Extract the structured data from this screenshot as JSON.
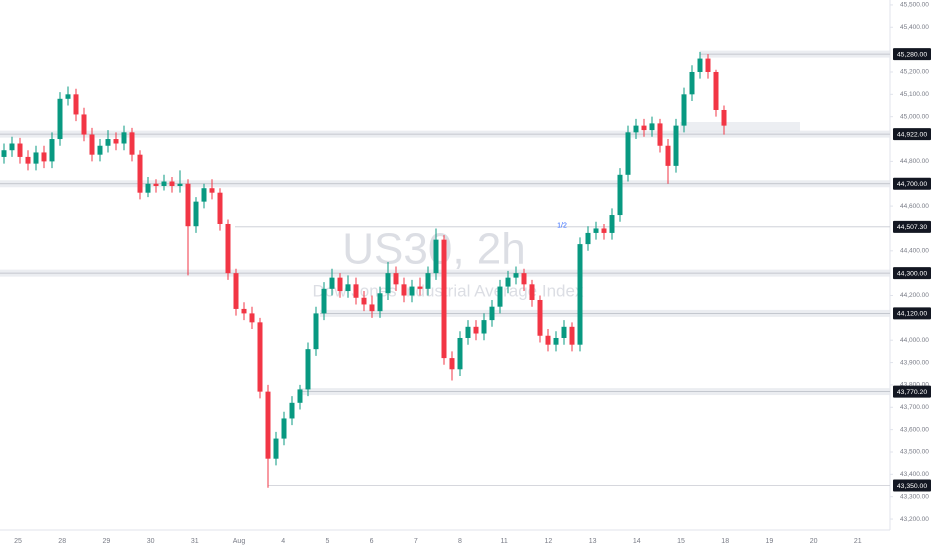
{
  "chart_data": {
    "type": "candlestick",
    "title": "US30, 2h",
    "subtitle": "Dow Jones Industrial Average Index",
    "categories": [
      "25",
      "28",
      "29",
      "30",
      "31",
      "Aug",
      "4",
      "5",
      "6",
      "7",
      "8",
      "11",
      "12",
      "13",
      "14",
      "15",
      "18",
      "19",
      "20",
      "21"
    ],
    "open": [
      44820,
      44850,
      44880,
      44820,
      44790,
      44840,
      44800,
      44900,
      45080,
      45100,
      45010,
      44920,
      44830,
      44870,
      44900,
      44880,
      44930,
      44830,
      44660,
      44700,
      44690,
      44710,
      44690,
      44700,
      44510,
      44620,
      44680,
      44660,
      44520,
      44300,
      44140,
      44120,
      44080,
      43770,
      43470,
      43560,
      43650,
      43720,
      43780,
      43960,
      44120,
      44230,
      44280,
      44220,
      44250,
      44190,
      44160,
      44130,
      44210,
      44300,
      44250,
      44200,
      44240,
      44230,
      44300,
      44450,
      43920,
      43870,
      44010,
      44060,
      44030,
      44090,
      44150,
      44240,
      44280,
      44300,
      44250,
      44180,
      44020,
      43980,
      44010,
      44060,
      43980,
      44430,
      44480,
      44500,
      44480,
      44560,
      44740,
      44930,
      44960,
      44940,
      44970,
      44870,
      44780,
      44960,
      45100,
      45200,
      45260,
      45200,
      45030
    ],
    "high": [
      44880,
      44910,
      44905,
      44850,
      44870,
      44870,
      44930,
      45110,
      45135,
      45125,
      45040,
      44950,
      44900,
      44940,
      44930,
      44960,
      44950,
      44850,
      44730,
      44720,
      44740,
      44730,
      44760,
      44720,
      44640,
      44700,
      44720,
      44680,
      44540,
      44320,
      44170,
      44150,
      44100,
      43800,
      43590,
      43680,
      43750,
      43800,
      43990,
      44150,
      44260,
      44320,
      44300,
      44290,
      44280,
      44220,
      44200,
      44240,
      44350,
      44330,
      44280,
      44270,
      44280,
      44330,
      44500,
      44470,
      43950,
      44040,
      44090,
      44090,
      44120,
      44180,
      44270,
      44310,
      44330,
      44320,
      44270,
      44200,
      44050,
      44040,
      44090,
      44080,
      44460,
      44510,
      44530,
      44520,
      44590,
      44770,
      44960,
      44990,
      44990,
      45000,
      44990,
      44900,
      44990,
      45130,
      45230,
      45290,
      45280,
      45210,
      45050
    ],
    "low": [
      44790,
      44820,
      44790,
      44760,
      44760,
      44770,
      44770,
      44870,
      45050,
      44980,
      44890,
      44800,
      44800,
      44840,
      44850,
      44850,
      44800,
      44630,
      44640,
      44660,
      44670,
      44660,
      44660,
      44290,
      44480,
      44590,
      44630,
      44490,
      44270,
      44110,
      44090,
      44050,
      43740,
      43340,
      43440,
      43530,
      43620,
      43690,
      43750,
      43930,
      44090,
      44200,
      44190,
      44190,
      44160,
      44130,
      44100,
      44100,
      44180,
      44220,
      44170,
      44170,
      44200,
      44200,
      44270,
      43890,
      43820,
      43840,
      43980,
      44000,
      44000,
      44060,
      44120,
      44210,
      44250,
      44220,
      44150,
      43990,
      43950,
      43950,
      43980,
      43950,
      43950,
      44400,
      44450,
      44450,
      44450,
      44530,
      44710,
      44900,
      44910,
      44910,
      44840,
      44700,
      44750,
      44930,
      45070,
      45170,
      45170,
      45000,
      44920
    ],
    "close": [
      44850,
      44880,
      44820,
      44790,
      44840,
      44800,
      44900,
      45080,
      45100,
      45010,
      44920,
      44830,
      44870,
      44900,
      44880,
      44930,
      44830,
      44660,
      44700,
      44690,
      44710,
      44690,
      44700,
      44510,
      44620,
      44680,
      44660,
      44520,
      44300,
      44140,
      44120,
      44080,
      43770,
      43470,
      43560,
      43650,
      43720,
      43780,
      43960,
      44120,
      44230,
      44280,
      44220,
      44250,
      44190,
      44160,
      44130,
      44210,
      44300,
      44250,
      44200,
      44240,
      44230,
      44300,
      44450,
      43920,
      43870,
      44010,
      44060,
      44030,
      44090,
      44150,
      44240,
      44280,
      44300,
      44250,
      44180,
      44020,
      43980,
      44010,
      44060,
      43980,
      44430,
      44480,
      44500,
      44480,
      44560,
      44740,
      44930,
      44960,
      44940,
      44970,
      44870,
      44780,
      44960,
      45100,
      45200,
      45260,
      45200,
      45030,
      44960
    ],
    "up_color": "#089981",
    "down_color": "#f23645",
    "ylim": [
      43151,
      45522
    ],
    "yticks": [
      {
        "value": 45500,
        "label": "45,500.00"
      },
      {
        "value": 45400,
        "label": "45,400.00"
      },
      {
        "value": 45200,
        "label": "45,200.00"
      },
      {
        "value": 45100,
        "label": "45,100.00"
      },
      {
        "value": 45000,
        "label": "45,000.00"
      },
      {
        "value": 44800,
        "label": "44,800.00"
      },
      {
        "value": 44600,
        "label": "44,600.00"
      },
      {
        "value": 44400,
        "label": "44,400.00"
      },
      {
        "value": 44200,
        "label": "44,200.00"
      },
      {
        "value": 44000,
        "label": "44,000.00"
      },
      {
        "value": 43900,
        "label": "43,900.00"
      },
      {
        "value": 43800,
        "label": "43,800.00"
      },
      {
        "value": 43700,
        "label": "43,700.00"
      },
      {
        "value": 43600,
        "label": "43,600.00"
      },
      {
        "value": 43500,
        "label": "43,500.00"
      },
      {
        "value": 43400,
        "label": "43,400.00"
      },
      {
        "value": 43300,
        "label": "43,300.00"
      },
      {
        "value": 43200,
        "label": "43,200.00"
      }
    ],
    "levels": {
      "values": [
        45280,
        44922,
        44700,
        44507.3,
        44300,
        44120,
        43770.2,
        43350
      ],
      "value_labels": [
        "45,280.00",
        "44,922.00",
        "44,700.00",
        "44,507.30",
        "44,300.00",
        "44,120.00",
        "43,770.20",
        "43,350.00"
      ]
    },
    "annotation": "1/2"
  }
}
